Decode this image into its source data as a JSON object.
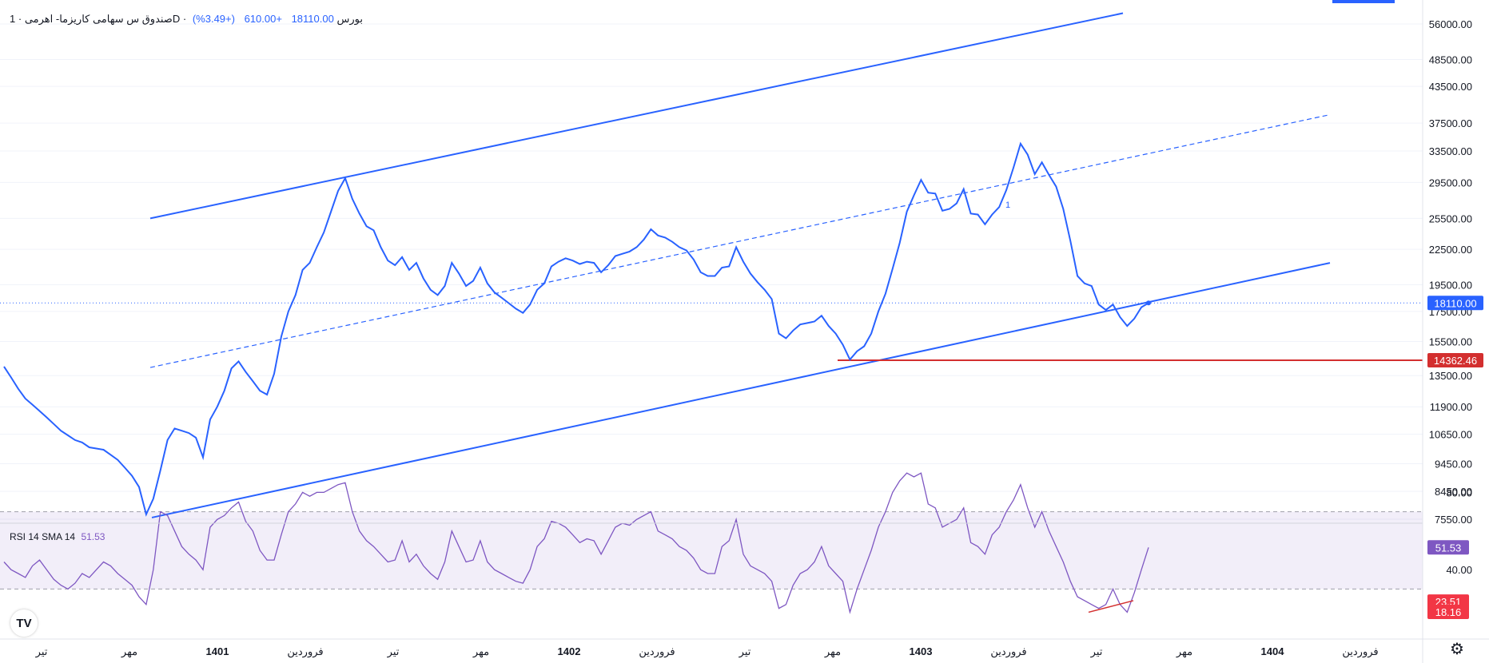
{
  "header": {
    "symbol": "صندوق س سهامی کاریزما- اهرمی",
    "exchange": "بورس",
    "interval": "1D",
    "close": "18110.00",
    "change": "+610.00",
    "change_pct": "(+3.49%)",
    "sep": "·"
  },
  "rsi_header": {
    "name": "RSI",
    "len": "14",
    "ma": "SMA",
    "ma_len": "14",
    "value": "51.53"
  },
  "colors": {
    "price": "#2962ff",
    "support": "#d32f2f",
    "rsi": "#7e57c2",
    "band_fill": "rgba(126,87,194,0.10)",
    "grid": "#f0f3fa"
  },
  "price_badges": {
    "last": "18110.00",
    "level": "14362.46"
  },
  "rsi_badges": {
    "value": "51.53",
    "ma": "23.51",
    "ma2": "18.16"
  },
  "icons": {
    "logo": "tradingview-logo-icon",
    "settings": "gear-icon"
  },
  "chart_data": [
    {
      "type": "line",
      "title": "",
      "price_scale": "log",
      "y_ticks": [
        "56000.00",
        "48500.00",
        "43500.00",
        "37500.00",
        "33500.00",
        "29500.00",
        "25500.00",
        "22500.00",
        "19500.00",
        "17500.00",
        "15500.00",
        "13500.00",
        "11900.00",
        "10650.00",
        "9450.00",
        "8450.00",
        "7550.00"
      ],
      "x_ticks": [
        "تیر",
        "مهر",
        "1401",
        "فروردین",
        "تیر",
        "مهر",
        "1402",
        "فروردین",
        "تیر",
        "مهر",
        "1403",
        "فروردین",
        "تیر",
        "مهر",
        "1404",
        "فروردین"
      ],
      "series": [
        {
          "close": [
            14000,
            13400,
            12800,
            12300,
            12000,
            11700,
            11400,
            11100,
            10800,
            10600,
            10400,
            10300,
            10100,
            10050,
            10000,
            9800,
            9600,
            9300,
            9000,
            8600,
            7700,
            8200,
            9200,
            10400,
            10900,
            10800,
            10700,
            10500,
            9700,
            11300,
            11900,
            12700,
            13900,
            14300,
            13700,
            13200,
            12700,
            12500,
            13600,
            15800,
            17500,
            18700,
            20700,
            21300,
            22700,
            24100,
            26200,
            28500,
            30000,
            27600,
            26000,
            24700,
            24300,
            22700,
            21500,
            21100,
            21800,
            20700,
            21300,
            20000,
            19100,
            18700,
            19400,
            21300,
            20400,
            19400,
            19800,
            20900,
            19600,
            18900,
            18500,
            18100,
            17700,
            17400,
            18000,
            19100,
            19600,
            21000,
            21400,
            21700,
            21500,
            21200,
            21400,
            21300,
            20500,
            21100,
            21900,
            22100,
            22300,
            22700,
            23400,
            24400,
            23800,
            23600,
            23200,
            22700,
            22400,
            21600,
            20500,
            20200,
            20200,
            20900,
            21000,
            22700,
            21400,
            20400,
            19700,
            19100,
            18400,
            16000,
            15700,
            16200,
            16600,
            16700,
            16800,
            17200,
            16500,
            16000,
            15300,
            14400,
            14900,
            15200,
            16000,
            17500,
            18800,
            20800,
            23100,
            26200,
            28000,
            29800,
            28300,
            28200,
            26300,
            26500,
            27100,
            28700,
            26000,
            25900,
            24900,
            25900,
            26700,
            28600,
            31300,
            34500,
            33000,
            30500,
            32000,
            30400,
            29000,
            26500,
            23300,
            20200,
            19600,
            19400,
            18000,
            17600,
            18000,
            17100,
            16500,
            17000,
            17800,
            18110
          ]
        }
      ],
      "channel_lines": "parallel rising channel with dashed median; horizontal support at 14362.46",
      "annotation": "1"
    },
    {
      "type": "line",
      "title": "RSI",
      "ylim": [
        0,
        100
      ],
      "levels": [
        70,
        30
      ],
      "y_ticks": [
        "80.00",
        "40.00"
      ],
      "series": [
        {
          "name": "RSI",
          "values": [
            44,
            40,
            38,
            36,
            42,
            45,
            40,
            35,
            32,
            30,
            33,
            38,
            36,
            40,
            44,
            42,
            38,
            35,
            32,
            26,
            22,
            40,
            70,
            68,
            60,
            52,
            48,
            45,
            40,
            62,
            66,
            68,
            72,
            75,
            65,
            60,
            50,
            45,
            45,
            58,
            70,
            74,
            80,
            78,
            80,
            80,
            82,
            84,
            85,
            70,
            60,
            55,
            52,
            48,
            44,
            45,
            55,
            44,
            48,
            42,
            38,
            35,
            44,
            60,
            52,
            44,
            45,
            55,
            44,
            40,
            38,
            36,
            34,
            33,
            40,
            52,
            56,
            65,
            64,
            62,
            58,
            54,
            56,
            55,
            48,
            55,
            62,
            64,
            63,
            66,
            68,
            70,
            60,
            58,
            56,
            52,
            50,
            46,
            40,
            38,
            38,
            52,
            55,
            66,
            48,
            42,
            40,
            38,
            34,
            20,
            22,
            32,
            38,
            40,
            44,
            52,
            42,
            38,
            34,
            18,
            30,
            40,
            50,
            62,
            70,
            80,
            86,
            90,
            88,
            90,
            74,
            72,
            62,
            64,
            66,
            72,
            54,
            52,
            48,
            58,
            62,
            70,
            76,
            84,
            72,
            62,
            70,
            60,
            52,
            44,
            34,
            26,
            24,
            22,
            20,
            22,
            30,
            22,
            18,
            28,
            40,
            51.53
          ]
        }
      ]
    }
  ]
}
